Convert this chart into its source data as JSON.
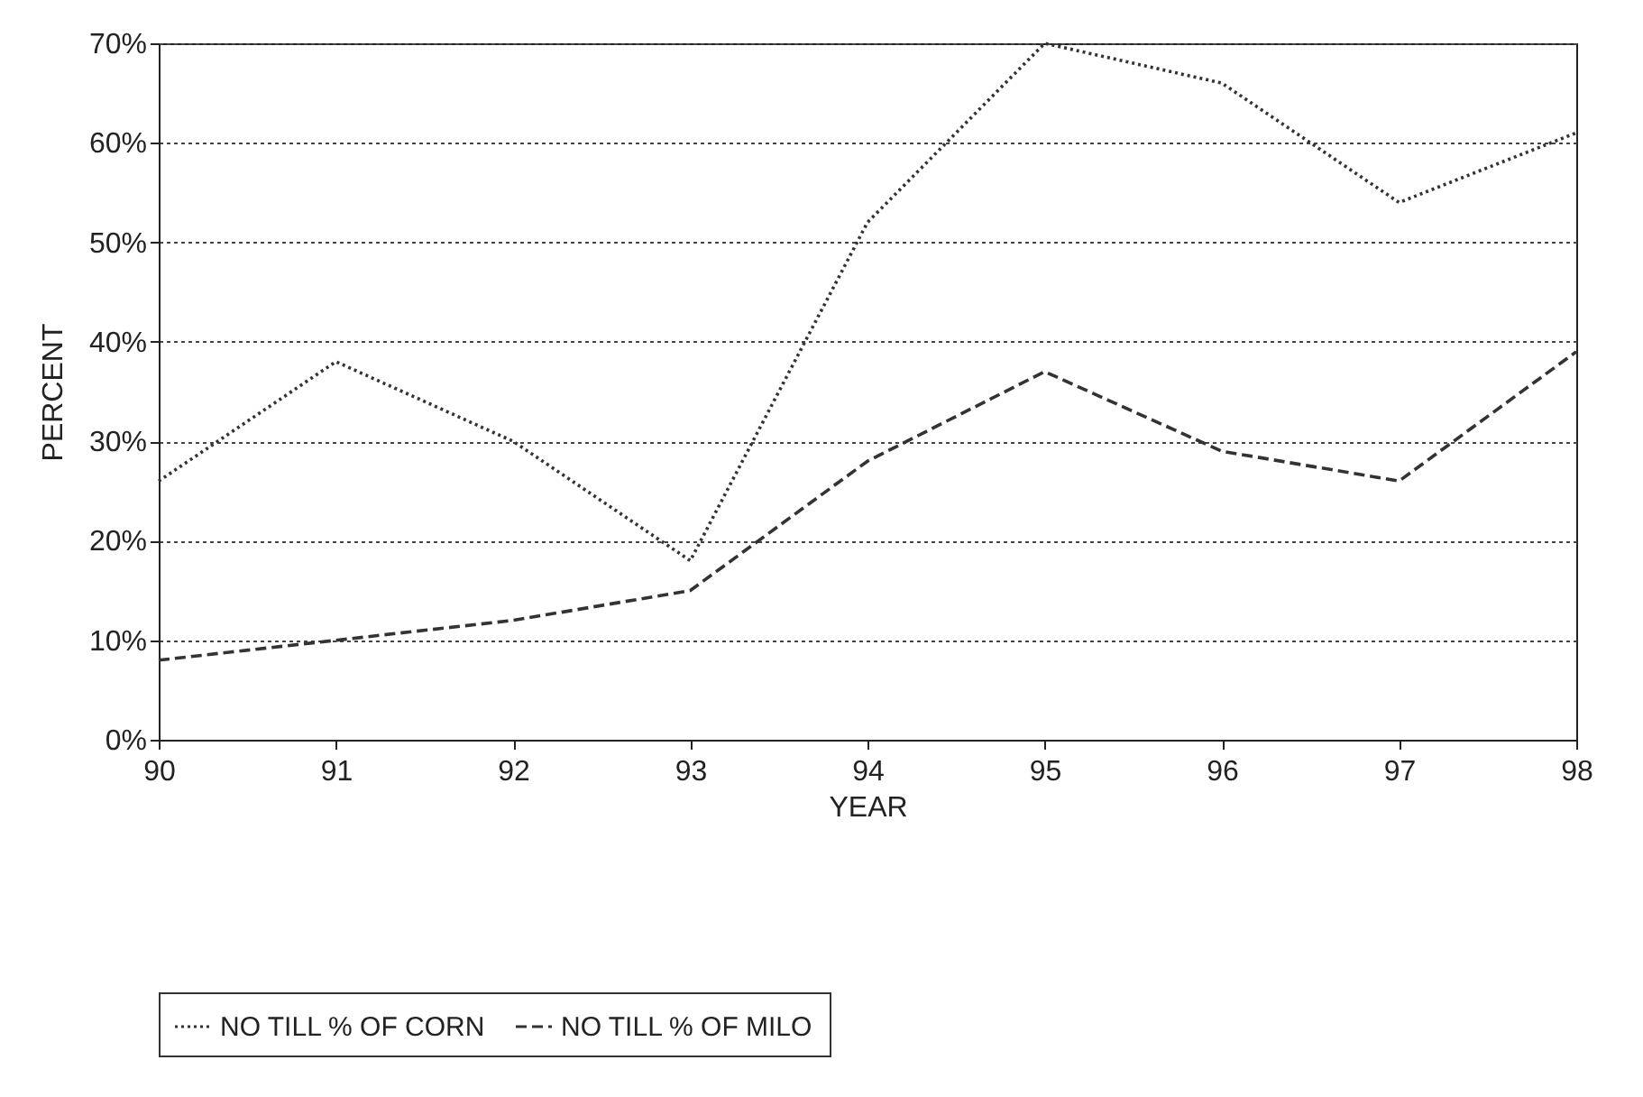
{
  "chart_data": {
    "type": "line",
    "xlabel": "YEAR",
    "ylabel": "PERCENT",
    "x": [
      90,
      91,
      92,
      93,
      94,
      95,
      96,
      97,
      98
    ],
    "xlim": [
      90,
      98
    ],
    "xticks": [
      90,
      91,
      92,
      93,
      94,
      95,
      96,
      97,
      98
    ],
    "ylim": [
      0,
      70
    ],
    "yticks": [
      {
        "value": 0,
        "label": "0%"
      },
      {
        "value": 10,
        "label": "10%"
      },
      {
        "value": 20,
        "label": "20%"
      },
      {
        "value": 30,
        "label": "30%"
      },
      {
        "value": 40,
        "label": "40%"
      },
      {
        "value": 50,
        "label": "50%"
      },
      {
        "value": 60,
        "label": "60%"
      },
      {
        "value": 70,
        "label": "70%"
      }
    ],
    "grid": "y",
    "legend": "bottom",
    "marker": "none",
    "series": [
      {
        "name": "NO TILL % OF CORN",
        "color": "#333333",
        "line_style": "dotted",
        "values": [
          26,
          38,
          30,
          18,
          52,
          70,
          66,
          54,
          61
        ]
      },
      {
        "name": "NO TILL % OF MILO",
        "color": "#333333",
        "line_style": "dashed",
        "values": [
          8,
          10,
          12,
          15,
          28,
          37,
          29,
          26,
          39
        ]
      }
    ]
  }
}
